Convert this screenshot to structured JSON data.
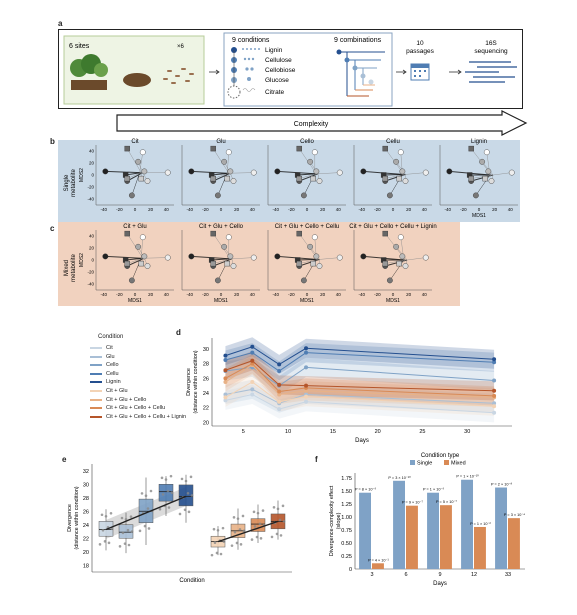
{
  "panel_labels": {
    "a": "a",
    "b": "b",
    "c": "c",
    "d": "d",
    "e": "e",
    "f": "f"
  },
  "panel_a": {
    "sites": "6 sites",
    "times6": "×6",
    "conditions": "9 conditions",
    "combinations": "9 combinations",
    "metabolites": [
      "Lignin",
      "Cellulose",
      "Cellobiose",
      "Glucose",
      "Citrate"
    ],
    "passages": "10\npassages",
    "passages_l1": "10",
    "passages_l2": "passages",
    "seq_l1": "16S",
    "seq_l2": "sequencing",
    "complexity": "Complexity"
  },
  "panel_b": {
    "row_label": "Single\nmetabolite",
    "row_label_l1": "Single",
    "row_label_l2": "metabolite",
    "titles": [
      "Cit",
      "Glu",
      "Cello",
      "Cellu",
      "Lignin"
    ],
    "ylabel": "MDS2",
    "xlabel": "MDS1",
    "xticks": [
      "-40",
      "-20",
      "0",
      "20",
      "40"
    ],
    "yticks": [
      "40",
      "20",
      "0",
      "-20",
      "-40"
    ]
  },
  "panel_c": {
    "row_label_l1": "Mixed",
    "row_label_l2": "metabolite",
    "titles": [
      "Cit + Glu",
      "Cit + Glu + Cello",
      "Cit + Glu + Cello + Cellu",
      "Cit + Glu + Cello + Cellu + Lignin"
    ],
    "ylabel": "MDS2",
    "xlabel": "MDS1",
    "xticks": [
      "-40",
      "-20",
      "0",
      "20",
      "40"
    ],
    "yticks": [
      "40",
      "20",
      "0",
      "-20",
      "-40"
    ]
  },
  "legend": {
    "title": "Condition",
    "items": [
      {
        "label": "Cit",
        "color": "#c9d6e3"
      },
      {
        "label": "Glu",
        "color": "#a9bfd6"
      },
      {
        "label": "Cello",
        "color": "#7fa2c6"
      },
      {
        "label": "Cellu",
        "color": "#4f7db3"
      },
      {
        "label": "Lignin",
        "color": "#244f8f"
      },
      {
        "label": "Cit + Glu",
        "color": "#f3d3b5"
      },
      {
        "label": "Cit + Glu + Cello",
        "color": "#e8b287"
      },
      {
        "label": "Cit + Glu + Cello + Cellu",
        "color": "#d98a55"
      },
      {
        "label": "Cit + Glu + Cello + Cellu + Lignin",
        "color": "#b5552a"
      }
    ]
  },
  "chart_data": [
    {
      "id": "d",
      "type": "line",
      "xlabel": "Days",
      "ylabel": "Divergence\n(distance within condition)",
      "ylabel_l1": "Divergence",
      "ylabel_l2": "(distance within condition)",
      "x": [
        3,
        6,
        9,
        12,
        33
      ],
      "xticks": [
        5,
        10,
        15,
        20,
        25,
        30
      ],
      "yticks": [
        20,
        22,
        24,
        26,
        28,
        30
      ],
      "ylim": [
        19.5,
        31.5
      ],
      "xlim": [
        1.5,
        35
      ],
      "series": [
        {
          "name": "Cit",
          "color": "#c9d6e3",
          "values": [
            23.0,
            23.8,
            21.8,
            22.8,
            21.3
          ]
        },
        {
          "name": "Glu",
          "color": "#a9bfd6",
          "values": [
            23.8,
            24.5,
            22.6,
            23.8,
            22.6
          ]
        },
        {
          "name": "Cello",
          "color": "#7fa2c6",
          "values": [
            27.0,
            27.5,
            25.0,
            27.5,
            25.7
          ]
        },
        {
          "name": "Cellu",
          "color": "#4f7db3",
          "values": [
            28.5,
            29.5,
            27.0,
            29.5,
            28.2
          ]
        },
        {
          "name": "Lignin",
          "color": "#244f8f",
          "values": [
            29.1,
            30.3,
            27.9,
            30.1,
            28.6
          ]
        },
        {
          "name": "Cit + Glu",
          "color": "#f3d3b5",
          "values": [
            23.4,
            25.5,
            22.8,
            23.5,
            22.2
          ]
        },
        {
          "name": "Cit + Glu + Cello",
          "color": "#e8b287",
          "values": [
            25.5,
            27.8,
            23.8,
            24.3,
            23.4
          ]
        },
        {
          "name": "Cit + Glu + Cello + Cellu",
          "color": "#d98a55",
          "values": [
            26.0,
            28.0,
            24.2,
            24.7,
            23.6
          ]
        },
        {
          "name": "Cit + Glu + Cello + Cellu + Lignin",
          "color": "#b5552a",
          "values": [
            27.1,
            28.4,
            25.1,
            25.0,
            24.3
          ]
        }
      ]
    },
    {
      "id": "e",
      "type": "box",
      "xlabel": "Condition",
      "ylabel_l1": "Divergence",
      "ylabel_l2": "(distance within condition)",
      "yticks": [
        18,
        20,
        22,
        24,
        26,
        28,
        30,
        32
      ],
      "ylim": [
        17,
        33
      ],
      "groups": [
        {
          "name": "Cit",
          "color": "#c9d6e3",
          "q1": 22.3,
          "median": 23.3,
          "q3": 24.5,
          "min": 20.2,
          "max": 26.3
        },
        {
          "name": "Glu",
          "color": "#a9bfd6",
          "q1": 22.0,
          "median": 22.9,
          "q3": 24.0,
          "min": 19.8,
          "max": 25.8
        },
        {
          "name": "Cello",
          "color": "#7fa2c6",
          "q1": 24.3,
          "median": 26.0,
          "q3": 27.8,
          "min": 21.0,
          "max": 31.0
        },
        {
          "name": "Cellu",
          "color": "#4f7db3",
          "q1": 27.5,
          "median": 28.9,
          "q3": 30.0,
          "min": 25.3,
          "max": 31.2
        },
        {
          "name": "Lignin",
          "color": "#244f8f",
          "q1": 26.8,
          "median": 28.2,
          "q3": 29.9,
          "min": 24.3,
          "max": 31.4
        },
        {
          "name": "Cit + Glu",
          "color": "#f3d3b5",
          "q1": 20.7,
          "median": 21.5,
          "q3": 22.3,
          "min": 19.5,
          "max": 23.8
        },
        {
          "name": "Cit + Glu + Cello",
          "color": "#e8b287",
          "q1": 22.1,
          "median": 23.1,
          "q3": 24.1,
          "min": 20.3,
          "max": 26.4
        },
        {
          "name": "Cit + Glu + Cello + Cellu",
          "color": "#d98a55",
          "q1": 23.0,
          "median": 24.1,
          "q3": 24.9,
          "min": 21.3,
          "max": 27.0
        },
        {
          "name": "Cit + Glu + Cello + Cellu + Lignin",
          "color": "#b5552a",
          "q1": 23.4,
          "median": 24.5,
          "q3": 25.6,
          "min": 21.8,
          "max": 27.6
        }
      ]
    },
    {
      "id": "f",
      "type": "bar",
      "legend_title": "Condition type",
      "xlabel": "Days",
      "ylabel_l1": "Divergence-complexity effect",
      "ylabel_l2": "(slope)",
      "categories": [
        "3",
        "6",
        "9",
        "12",
        "33"
      ],
      "yticks": [
        "0",
        "0.25",
        "0.50",
        "0.75",
        "1.00",
        "1.25",
        "1.50",
        "1.75"
      ],
      "ylim": [
        0,
        1.85
      ],
      "series": [
        {
          "name": "Single",
          "color": "#7fa2c6",
          "values": [
            1.47,
            1.7,
            1.47,
            1.72,
            1.57
          ],
          "pvals": [
            "P = 8 × 10⁻⁹",
            "P = 3 × 10⁻¹⁰",
            "P = 1 × 10⁻⁹",
            "P = 1 × 10⁻¹⁰",
            "P = 2 × 10⁻⁸"
          ]
        },
        {
          "name": "Mixed",
          "color": "#d98a55",
          "values": [
            0.11,
            1.22,
            1.23,
            0.81,
            0.98
          ],
          "pvals": [
            "P = 4 × 10⁻¹",
            "P = 9 × 10⁻⁷",
            "P = 5 × 10⁻⁷",
            "P = 1 × 10⁻²",
            "P = 3 × 10⁻⁴"
          ]
        }
      ]
    }
  ]
}
